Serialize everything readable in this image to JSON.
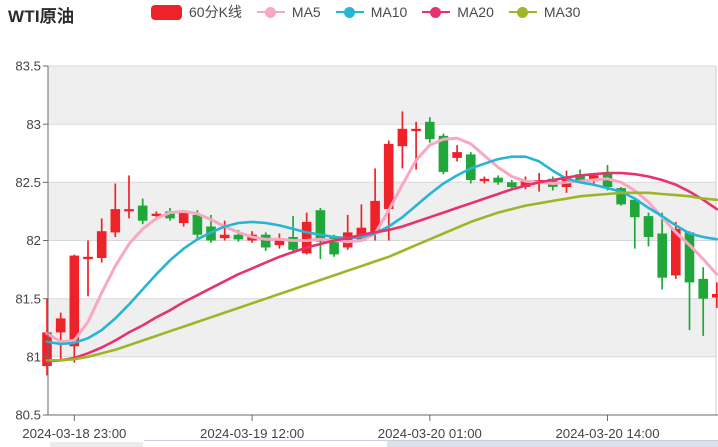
{
  "header": {
    "title": "WTI原油"
  },
  "legend": {
    "items": [
      {
        "label": "60分K线",
        "color": "#ee2329",
        "type": "candlestick"
      },
      {
        "label": "MA5",
        "color": "#f8a8c2",
        "type": "line"
      },
      {
        "label": "MA10",
        "color": "#27b5d6",
        "type": "line"
      },
      {
        "label": "MA20",
        "color": "#e6326e",
        "type": "line"
      },
      {
        "label": "MA30",
        "color": "#9cb627",
        "type": "line"
      }
    ]
  },
  "chart_data": {
    "type": "candlestick",
    "title": "WTI原油",
    "interval_label": "60分K线",
    "legend_position": "top",
    "grid": "horizontal-bands",
    "ylim": [
      80.5,
      83.5
    ],
    "y_axis": {
      "tick_labels": [
        "83.5",
        "83",
        "82.5",
        "82",
        "81.5",
        "81",
        "80.5"
      ],
      "step": 0.5
    },
    "x_axis": {
      "tick_labels": [
        "2024-03-18 23:00",
        "2024-03-19 12:00",
        "2024-03-20 01:00",
        "2024-03-20 14:00"
      ],
      "tick_indices": [
        2,
        15,
        28,
        41
      ]
    },
    "colors": {
      "up": "#ee2329",
      "down": "#1fa73a",
      "ma5": "#f8a8c2",
      "ma10": "#27b5d6",
      "ma20": "#e6326e",
      "ma30": "#9cb627",
      "band": "#efefef",
      "grid_line": "#d9d9d9",
      "axis_line": "#6b6b6b",
      "right_border": "#cfcfcf",
      "label_text": "#454545",
      "strip_left": "#ececec",
      "strip_line": "#c9d1dc",
      "strip_band": "#dbe2ed"
    },
    "candles": [
      {
        "t": "2024-03-18 21:00",
        "o": 80.92,
        "h": 81.5,
        "l": 80.84,
        "c": 81.21
      },
      {
        "t": "2024-03-18 22:00",
        "o": 81.21,
        "h": 81.38,
        "l": 80.96,
        "c": 81.33
      },
      {
        "t": "2024-03-18 23:00",
        "o": 81.09,
        "h": 81.88,
        "l": 80.95,
        "c": 81.87
      },
      {
        "t": "2024-03-19 00:00",
        "o": 81.84,
        "h": 82.0,
        "l": 81.52,
        "c": 81.86
      },
      {
        "t": "2024-03-19 01:00",
        "o": 81.85,
        "h": 82.19,
        "l": 81.81,
        "c": 82.08
      },
      {
        "t": "2024-03-19 02:00",
        "o": 82.07,
        "h": 82.49,
        "l": 82.03,
        "c": 82.27
      },
      {
        "t": "2024-03-19 03:00",
        "o": 82.25,
        "h": 82.56,
        "l": 82.19,
        "c": 82.27
      },
      {
        "t": "2024-03-19 04:00",
        "o": 82.3,
        "h": 82.36,
        "l": 82.14,
        "c": 82.17
      },
      {
        "t": "2024-03-19 05:00",
        "o": 82.21,
        "h": 82.25,
        "l": 82.19,
        "c": 82.23
      },
      {
        "t": "2024-03-19 06:00",
        "o": 82.25,
        "h": 82.28,
        "l": 82.17,
        "c": 82.19
      },
      {
        "t": "2024-03-19 07:00",
        "o": 82.15,
        "h": 82.26,
        "l": 82.12,
        "c": 82.24
      },
      {
        "t": "2024-03-19 08:00",
        "o": 82.22,
        "h": 82.26,
        "l": 82.02,
        "c": 82.05
      },
      {
        "t": "2024-03-19 09:00",
        "o": 82.12,
        "h": 82.22,
        "l": 81.98,
        "c": 82.0
      },
      {
        "t": "2024-03-19 10:00",
        "o": 82.02,
        "h": 82.17,
        "l": 82.0,
        "c": 82.05
      },
      {
        "t": "2024-03-19 11:00",
        "o": 82.05,
        "h": 82.09,
        "l": 81.99,
        "c": 82.01
      },
      {
        "t": "2024-03-19 12:00",
        "o": 82.0,
        "h": 82.08,
        "l": 81.98,
        "c": 82.05
      },
      {
        "t": "2024-03-19 13:00",
        "o": 82.05,
        "h": 82.07,
        "l": 81.91,
        "c": 81.94
      },
      {
        "t": "2024-03-19 14:00",
        "o": 81.96,
        "h": 82.06,
        "l": 81.93,
        "c": 82.02
      },
      {
        "t": "2024-03-19 15:00",
        "o": 82.03,
        "h": 82.21,
        "l": 81.89,
        "c": 81.92
      },
      {
        "t": "2024-03-19 16:00",
        "o": 81.89,
        "h": 82.24,
        "l": 81.88,
        "c": 82.16
      },
      {
        "t": "2024-03-19 17:00",
        "o": 82.26,
        "h": 82.28,
        "l": 81.84,
        "c": 81.99
      },
      {
        "t": "2024-03-19 18:00",
        "o": 82.03,
        "h": 82.05,
        "l": 81.86,
        "c": 81.88
      },
      {
        "t": "2024-03-19 19:00",
        "o": 81.94,
        "h": 82.22,
        "l": 81.92,
        "c": 82.07
      },
      {
        "t": "2024-03-19 20:00",
        "o": 82.0,
        "h": 82.31,
        "l": 81.99,
        "c": 82.11
      },
      {
        "t": "2024-03-19 21:00",
        "o": 82.07,
        "h": 82.62,
        "l": 82.0,
        "c": 82.34
      },
      {
        "t": "2024-03-19 22:00",
        "o": 82.27,
        "h": 82.86,
        "l": 82.0,
        "c": 82.83
      },
      {
        "t": "2024-03-19 23:00",
        "o": 82.81,
        "h": 83.11,
        "l": 82.62,
        "c": 82.96
      },
      {
        "t": "2024-03-20 00:00",
        "o": 82.94,
        "h": 83.02,
        "l": 82.61,
        "c": 82.96
      },
      {
        "t": "2024-03-20 01:00",
        "o": 83.02,
        "h": 83.06,
        "l": 82.84,
        "c": 82.87
      },
      {
        "t": "2024-03-20 02:00",
        "o": 82.9,
        "h": 82.92,
        "l": 82.57,
        "c": 82.59
      },
      {
        "t": "2024-03-20 03:00",
        "o": 82.71,
        "h": 82.82,
        "l": 82.68,
        "c": 82.76
      },
      {
        "t": "2024-03-20 04:00",
        "o": 82.74,
        "h": 82.76,
        "l": 82.49,
        "c": 82.52
      },
      {
        "t": "2024-03-20 05:00",
        "o": 82.51,
        "h": 82.55,
        "l": 82.49,
        "c": 82.53
      },
      {
        "t": "2024-03-20 06:00",
        "o": 82.54,
        "h": 82.56,
        "l": 82.48,
        "c": 82.5
      },
      {
        "t": "2024-03-20 07:00",
        "o": 82.5,
        "h": 82.52,
        "l": 82.43,
        "c": 82.46
      },
      {
        "t": "2024-03-20 08:00",
        "o": 82.46,
        "h": 82.55,
        "l": 82.44,
        "c": 82.51
      },
      {
        "t": "2024-03-20 09:00",
        "o": 82.49,
        "h": 82.58,
        "l": 82.42,
        "c": 82.52
      },
      {
        "t": "2024-03-20 10:00",
        "o": 82.53,
        "h": 82.55,
        "l": 82.43,
        "c": 82.46
      },
      {
        "t": "2024-03-20 11:00",
        "o": 82.46,
        "h": 82.6,
        "l": 82.41,
        "c": 82.55
      },
      {
        "t": "2024-03-20 12:00",
        "o": 82.57,
        "h": 82.61,
        "l": 82.5,
        "c": 82.52
      },
      {
        "t": "2024-03-20 13:00",
        "o": 82.51,
        "h": 82.58,
        "l": 82.49,
        "c": 82.56
      },
      {
        "t": "2024-03-20 14:00",
        "o": 82.58,
        "h": 82.65,
        "l": 82.43,
        "c": 82.46
      },
      {
        "t": "2024-03-20 15:00",
        "o": 82.45,
        "h": 82.46,
        "l": 82.3,
        "c": 82.31
      },
      {
        "t": "2024-03-20 16:00",
        "o": 82.35,
        "h": 82.37,
        "l": 81.93,
        "c": 82.2
      },
      {
        "t": "2024-03-20 17:00",
        "o": 82.21,
        "h": 82.24,
        "l": 81.95,
        "c": 82.03
      },
      {
        "t": "2024-03-20 18:00",
        "o": 82.06,
        "h": 82.24,
        "l": 81.58,
        "c": 81.68
      },
      {
        "t": "2024-03-20 19:00",
        "o": 81.7,
        "h": 82.16,
        "l": 81.67,
        "c": 82.1
      },
      {
        "t": "2024-03-20 20:00",
        "o": 82.07,
        "h": 82.08,
        "l": 81.23,
        "c": 81.64
      },
      {
        "t": "2024-03-20 21:00",
        "o": 81.67,
        "h": 81.77,
        "l": 81.18,
        "c": 81.5
      },
      {
        "t": "2024-03-20 22:00",
        "o": 81.51,
        "h": 81.64,
        "l": 81.42,
        "c": 81.54
      }
    ],
    "series": [
      {
        "name": "MA5",
        "values": [
          81.2,
          81.13,
          81.14,
          81.3,
          81.55,
          81.78,
          81.97,
          82.1,
          82.19,
          82.24,
          82.25,
          82.23,
          82.18,
          82.12,
          82.07,
          82.03,
          82.01,
          82.01,
          82.0,
          82.0,
          82.01,
          82.0,
          81.99,
          82.0,
          82.06,
          82.26,
          82.48,
          82.69,
          82.82,
          82.87,
          82.88,
          82.83,
          82.73,
          82.63,
          82.55,
          82.51,
          82.5,
          82.49,
          82.5,
          82.51,
          82.52,
          82.53,
          82.5,
          82.43,
          82.33,
          82.2,
          82.07,
          81.96,
          81.84,
          81.71
        ]
      },
      {
        "name": "MA10",
        "values": [
          81.13,
          81.11,
          81.12,
          81.16,
          81.23,
          81.33,
          81.45,
          81.58,
          81.71,
          81.83,
          81.93,
          82.01,
          82.07,
          82.12,
          82.15,
          82.16,
          82.15,
          82.13,
          82.1,
          82.07,
          82.05,
          82.03,
          82.02,
          82.03,
          82.06,
          82.12,
          82.2,
          82.3,
          82.4,
          82.49,
          82.56,
          82.62,
          82.66,
          82.7,
          82.72,
          82.72,
          82.68,
          82.6,
          82.53,
          82.5,
          82.48,
          82.45,
          82.42,
          82.36,
          82.28,
          82.21,
          82.13,
          82.06,
          82.03,
          82.01
        ]
      },
      {
        "name": "MA20",
        "values": [
          80.96,
          80.97,
          80.99,
          81.03,
          81.08,
          81.14,
          81.21,
          81.27,
          81.34,
          81.4,
          81.47,
          81.53,
          81.59,
          81.65,
          81.71,
          81.76,
          81.81,
          81.86,
          81.9,
          81.94,
          81.97,
          82.0,
          82.02,
          82.05,
          82.07,
          82.09,
          82.12,
          82.16,
          82.2,
          82.24,
          82.28,
          82.32,
          82.36,
          82.4,
          82.44,
          82.47,
          82.5,
          82.52,
          82.54,
          82.56,
          82.57,
          82.58,
          82.58,
          82.57,
          82.55,
          82.52,
          82.48,
          82.42,
          82.35,
          82.27
        ]
      },
      {
        "name": "MA30",
        "values": [
          80.97,
          80.97,
          80.98,
          81.0,
          81.03,
          81.06,
          81.1,
          81.14,
          81.18,
          81.22,
          81.26,
          81.3,
          81.34,
          81.38,
          81.42,
          81.46,
          81.5,
          81.54,
          81.58,
          81.62,
          81.66,
          81.7,
          81.74,
          81.78,
          81.82,
          81.86,
          81.91,
          81.96,
          82.01,
          82.06,
          82.11,
          82.16,
          82.2,
          82.24,
          82.27,
          82.3,
          82.32,
          82.34,
          82.36,
          82.38,
          82.39,
          82.4,
          82.41,
          82.41,
          82.41,
          82.4,
          82.39,
          82.38,
          82.36,
          82.35
        ]
      }
    ]
  }
}
